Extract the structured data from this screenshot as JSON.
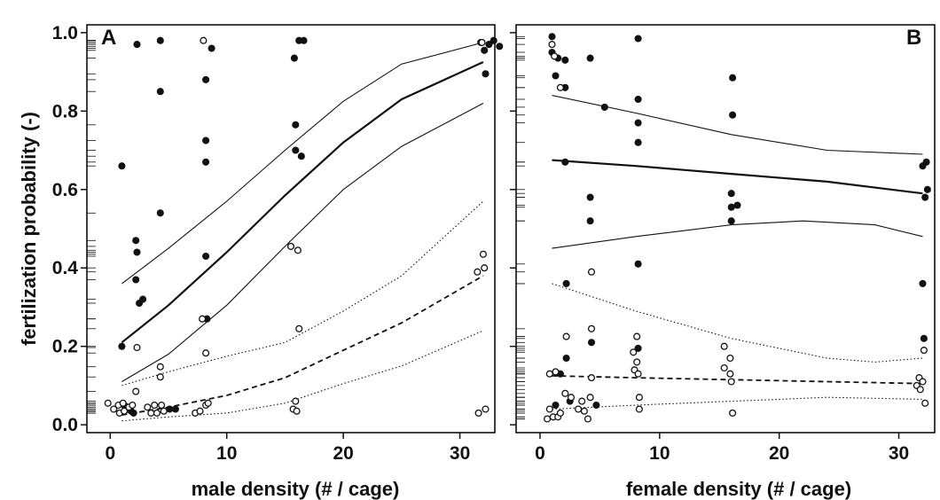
{
  "ylabel": "fertilization probability (-)",
  "chart_data": [
    {
      "panel": "A",
      "type": "scatter",
      "xlabel": "male density (# / cage)",
      "ylabel": "fertilization probability (-)",
      "xlim": [
        -2,
        33
      ],
      "ylim": [
        -0.02,
        1.02
      ],
      "x_ticks": [
        0,
        10,
        20,
        30
      ],
      "y_ticks": [
        0.0,
        0.2,
        0.4,
        0.6,
        0.8,
        1.0
      ],
      "y_tick_labels": [
        "0.0",
        "0.2",
        "0.4",
        "0.6",
        "0.8",
        "1.0"
      ],
      "grid": false,
      "series": [
        {
          "style": "filled",
          "points": [
            [
              1,
              0.66
            ],
            [
              1,
              0.2
            ],
            [
              2.3,
              0.97
            ],
            [
              2.2,
              0.47
            ],
            [
              2.3,
              0.44
            ],
            [
              2.2,
              0.37
            ],
            [
              2.5,
              0.31
            ],
            [
              2.8,
              0.32
            ],
            [
              4.3,
              0.98
            ],
            [
              4.3,
              0.85
            ],
            [
              4.3,
              0.54
            ],
            [
              8.2,
              0.88
            ],
            [
              8.2,
              0.725
            ],
            [
              8.2,
              0.67
            ],
            [
              8.2,
              0.43
            ],
            [
              8.3,
              0.27
            ],
            [
              8.7,
              0.96
            ],
            [
              15.8,
              0.935
            ],
            [
              15.9,
              0.765
            ],
            [
              15.9,
              0.7
            ],
            [
              16.2,
              0.98
            ],
            [
              16.4,
              0.685
            ],
            [
              16.6,
              0.98
            ],
            [
              31.8,
              0.975
            ],
            [
              32.1,
              0.955
            ],
            [
              32.2,
              0.895
            ],
            [
              32.5,
              0.97
            ],
            [
              32.9,
              0.98
            ],
            [
              33.4,
              0.965
            ],
            [
              1.2,
              0.05
            ],
            [
              1.5,
              0.04
            ],
            [
              1.8,
              0.035
            ],
            [
              2,
              0.03
            ],
            [
              5.1,
              0.04
            ],
            [
              5.6,
              0.04
            ]
          ]
        },
        {
          "style": "open",
          "points": [
            [
              -0.2,
              0.055
            ],
            [
              0.3,
              0.04
            ],
            [
              0.7,
              0.05
            ],
            [
              0.8,
              0.03
            ],
            [
              1.1,
              0.055
            ],
            [
              1.2,
              0.035
            ],
            [
              1.6,
              0.045
            ],
            [
              1.9,
              0.05
            ],
            [
              2.2,
              0.085
            ],
            [
              2.3,
              0.197
            ],
            [
              3.2,
              0.045
            ],
            [
              3.5,
              0.03
            ],
            [
              3.8,
              0.05
            ],
            [
              4,
              0.03
            ],
            [
              4.3,
              0.148
            ],
            [
              4.3,
              0.122
            ],
            [
              4.4,
              0.05
            ],
            [
              4.6,
              0.035
            ],
            [
              7.3,
              0.03
            ],
            [
              7.7,
              0.035
            ],
            [
              7.9,
              0.27
            ],
            [
              8,
              0.98
            ],
            [
              8.2,
              0.183
            ],
            [
              8.2,
              0.05
            ],
            [
              8.4,
              0.055
            ],
            [
              15.5,
              0.455
            ],
            [
              15.7,
              0.04
            ],
            [
              15.9,
              0.06
            ],
            [
              16,
              0.035
            ],
            [
              16.1,
              0.445
            ],
            [
              16.2,
              0.245
            ],
            [
              31.5,
              0.39
            ],
            [
              31.6,
              0.03
            ],
            [
              31.9,
              0.975
            ],
            [
              32,
              0.435
            ],
            [
              32.1,
              0.4
            ],
            [
              32.2,
              0.04
            ]
          ]
        }
      ],
      "fit_lines": [
        {
          "style": "solid-thick",
          "points": [
            [
              1,
              0.21
            ],
            [
              5,
              0.305
            ],
            [
              10,
              0.44
            ],
            [
              15,
              0.585
            ],
            [
              20,
              0.72
            ],
            [
              25,
              0.83
            ],
            [
              32,
              0.925
            ]
          ]
        },
        {
          "style": "solid-thin",
          "points": [
            [
              1,
              0.36
            ],
            [
              5,
              0.45
            ],
            [
              10,
              0.57
            ],
            [
              15,
              0.7
            ],
            [
              20,
              0.825
            ],
            [
              25,
              0.92
            ],
            [
              32,
              0.975
            ]
          ]
        },
        {
          "style": "solid-thin",
          "points": [
            [
              1,
              0.11
            ],
            [
              5,
              0.18
            ],
            [
              10,
              0.305
            ],
            [
              15,
              0.455
            ],
            [
              20,
              0.6
            ],
            [
              25,
              0.71
            ],
            [
              32,
              0.82
            ]
          ]
        },
        {
          "style": "dashed",
          "points": [
            [
              1,
              0.025
            ],
            [
              5,
              0.045
            ],
            [
              10,
              0.075
            ],
            [
              15,
              0.12
            ],
            [
              20,
              0.19
            ],
            [
              25,
              0.26
            ],
            [
              32,
              0.38
            ]
          ]
        },
        {
          "style": "dotted",
          "points": [
            [
              1,
              0.1
            ],
            [
              5,
              0.135
            ],
            [
              10,
              0.175
            ],
            [
              15,
              0.21
            ],
            [
              20,
              0.29
            ],
            [
              25,
              0.38
            ],
            [
              32,
              0.57
            ]
          ]
        },
        {
          "style": "dotted",
          "points": [
            [
              1,
              0.01
            ],
            [
              5,
              0.02
            ],
            [
              10,
              0.03
            ],
            [
              15,
              0.055
            ],
            [
              20,
              0.105
            ],
            [
              25,
              0.15
            ],
            [
              32,
              0.24
            ]
          ]
        }
      ]
    },
    {
      "panel": "B",
      "type": "scatter",
      "xlabel": "female density (# / cage)",
      "ylabel": "",
      "xlim": [
        -2,
        33
      ],
      "ylim": [
        -0.02,
        1.02
      ],
      "x_ticks": [
        0,
        10,
        20,
        30
      ],
      "y_ticks": [
        0.0,
        0.2,
        0.4,
        0.6,
        0.8,
        1.0
      ],
      "grid": false,
      "series": [
        {
          "style": "filled",
          "points": [
            [
              1,
              0.99
            ],
            [
              1,
              0.95
            ],
            [
              1.3,
              0.89
            ],
            [
              1.5,
              0.935
            ],
            [
              2.1,
              0.93
            ],
            [
              2.1,
              0.86
            ],
            [
              2.1,
              0.67
            ],
            [
              2.2,
              0.36
            ],
            [
              2.2,
              0.17
            ],
            [
              1.3,
              0.05
            ],
            [
              1.7,
              0.13
            ],
            [
              2.5,
              0.06
            ],
            [
              4.2,
              0.935
            ],
            [
              4.2,
              0.58
            ],
            [
              4.2,
              0.52
            ],
            [
              4.3,
              0.21
            ],
            [
              4.7,
              0.05
            ],
            [
              5.4,
              0.81
            ],
            [
              8.2,
              0.985
            ],
            [
              8.2,
              0.83
            ],
            [
              8.2,
              0.77
            ],
            [
              8.2,
              0.72
            ],
            [
              8.2,
              0.41
            ],
            [
              8.2,
              0.195
            ],
            [
              16.1,
              0.885
            ],
            [
              16.1,
              0.79
            ],
            [
              16,
              0.59
            ],
            [
              16,
              0.555
            ],
            [
              16.5,
              0.56
            ],
            [
              16,
              0.52
            ],
            [
              32,
              0.66
            ],
            [
              32.3,
              0.67
            ],
            [
              32.2,
              0.58
            ],
            [
              32.4,
              0.6
            ],
            [
              32,
              0.36
            ],
            [
              32.1,
              0.22
            ]
          ]
        },
        {
          "style": "open",
          "points": [
            [
              0.8,
              0.13
            ],
            [
              1,
              0.97
            ],
            [
              1.1,
              0.02
            ],
            [
              1.2,
              0.94
            ],
            [
              1.3,
              0.135
            ],
            [
              1.7,
              0.86
            ],
            [
              0.6,
              0.015
            ],
            [
              0.8,
              0.04
            ],
            [
              1.5,
              0.02
            ],
            [
              1.7,
              0.03
            ],
            [
              2.2,
              0.225
            ],
            [
              2.1,
              0.08
            ],
            [
              2.6,
              0.07
            ],
            [
              3.2,
              0.04
            ],
            [
              3.5,
              0.06
            ],
            [
              3.7,
              0.035
            ],
            [
              4,
              0.015
            ],
            [
              4.2,
              0.07
            ],
            [
              4.3,
              0.245
            ],
            [
              4.3,
              0.39
            ],
            [
              4.3,
              0.12
            ],
            [
              7.8,
              0.185
            ],
            [
              7.9,
              0.14
            ],
            [
              8.1,
              0.225
            ],
            [
              8.1,
              0.16
            ],
            [
              8.2,
              0.13
            ],
            [
              8.3,
              0.04
            ],
            [
              8.3,
              0.07
            ],
            [
              15.4,
              0.2
            ],
            [
              15.4,
              0.145
            ],
            [
              15.9,
              0.17
            ],
            [
              15.9,
              0.13
            ],
            [
              16,
              0.11
            ],
            [
              16.1,
              0.03
            ],
            [
              31.5,
              0.1
            ],
            [
              31.7,
              0.12
            ],
            [
              31.8,
              0.09
            ],
            [
              32,
              0.11
            ],
            [
              32.2,
              0.055
            ],
            [
              32.1,
              0.19
            ]
          ]
        }
      ],
      "fit_lines": [
        {
          "style": "solid-thick",
          "points": [
            [
              1,
              0.675
            ],
            [
              8,
              0.66
            ],
            [
              16,
              0.64
            ],
            [
              24,
              0.62
            ],
            [
              32,
              0.59
            ]
          ]
        },
        {
          "style": "solid-thin",
          "points": [
            [
              1,
              0.84
            ],
            [
              8,
              0.795
            ],
            [
              16,
              0.74
            ],
            [
              24,
              0.7
            ],
            [
              32,
              0.69
            ]
          ]
        },
        {
          "style": "solid-thin",
          "points": [
            [
              1,
              0.45
            ],
            [
              8,
              0.48
            ],
            [
              16,
              0.51
            ],
            [
              22,
              0.52
            ],
            [
              28,
              0.51
            ],
            [
              32,
              0.48
            ]
          ]
        },
        {
          "style": "dashed",
          "points": [
            [
              1,
              0.125
            ],
            [
              8,
              0.12
            ],
            [
              16,
              0.115
            ],
            [
              24,
              0.11
            ],
            [
              32,
              0.105
            ]
          ]
        },
        {
          "style": "dotted",
          "points": [
            [
              1,
              0.36
            ],
            [
              8,
              0.29
            ],
            [
              16,
              0.22
            ],
            [
              24,
              0.17
            ],
            [
              28,
              0.16
            ],
            [
              32,
              0.17
            ]
          ]
        },
        {
          "style": "dotted",
          "points": [
            [
              1,
              0.04
            ],
            [
              8,
              0.05
            ],
            [
              16,
              0.06
            ],
            [
              24,
              0.07
            ],
            [
              32,
              0.065
            ]
          ]
        }
      ]
    }
  ]
}
